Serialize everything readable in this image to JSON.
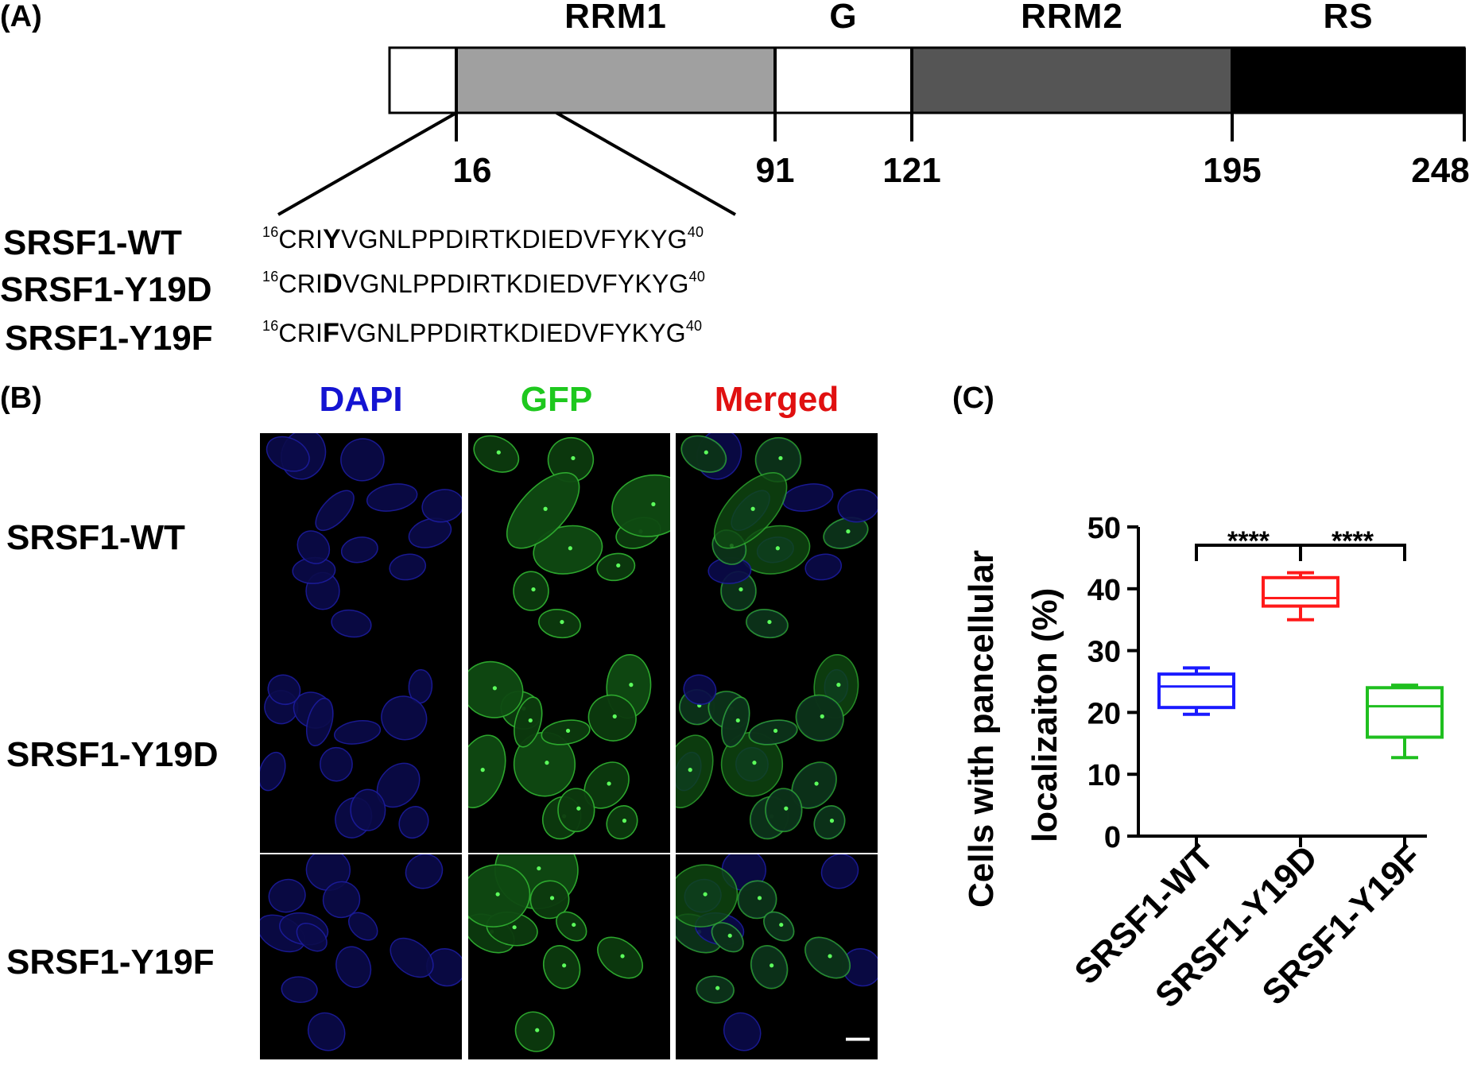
{
  "panels": {
    "a": "(A)",
    "b": "(B)",
    "c": "(C)"
  },
  "domain_map": {
    "domains": [
      {
        "name": "",
        "start": 1,
        "end": 16,
        "fill": "#ffffff"
      },
      {
        "name": "RRM1",
        "start": 16,
        "end": 91,
        "fill": "#a0a0a0"
      },
      {
        "name": "G",
        "start": 91,
        "end": 121,
        "fill": "#ffffff"
      },
      {
        "name": "RRM2",
        "start": 121,
        "end": 195,
        "fill": "#555555"
      },
      {
        "name": "RS",
        "start": 195,
        "end": 248,
        "fill": "#000000"
      }
    ],
    "positions": [
      "16",
      "91",
      "121",
      "195",
      "248"
    ]
  },
  "sequences": [
    {
      "label": "SRSF1-WT",
      "start": "16",
      "pre": "CRI",
      "mut": "Y",
      "post": "VGNLPPDIRTKDIEDVFYKYG",
      "end": "40"
    },
    {
      "label": "SRSF1-Y19D",
      "start": "16",
      "pre": "CRI",
      "mut": "D",
      "post": "VGNLPPDIRTKDIEDVFYKYG",
      "end": "40"
    },
    {
      "label": "SRSF1-Y19F",
      "start": "16",
      "pre": "CRI",
      "mut": "F",
      "post": "VGNLPPDIRTKDIEDVFYKYG",
      "end": "40"
    }
  ],
  "microscopy": {
    "channels": [
      {
        "name": "DAPI",
        "color": "#1414d2"
      },
      {
        "name": "GFP",
        "color": "#1ec81e"
      },
      {
        "name": "Merged",
        "color": "#e01010"
      }
    ],
    "rows": [
      "SRSF1-WT",
      "SRSF1-Y19D",
      "SRSF1-Y19F"
    ]
  },
  "chart_data": {
    "type": "box",
    "ylabel": "Cells with pancellular localizaiton (%)",
    "ylabel_lines": [
      "Cells with pancellular",
      "localizaiton (%)"
    ],
    "ylim": [
      0,
      50
    ],
    "yticks": [
      0,
      10,
      20,
      30,
      40,
      50
    ],
    "categories": [
      "SRSF1-WT",
      "SRSF1-Y19D",
      "SRSF1-Y19F"
    ],
    "series": [
      {
        "name": "SRSF1-WT",
        "min": 19.7,
        "q1": 20.8,
        "median": 24.2,
        "q3": 26.2,
        "max": 27.2,
        "color": "#1a1aff"
      },
      {
        "name": "SRSF1-Y19D",
        "min": 35.0,
        "q1": 37.2,
        "median": 38.5,
        "q3": 41.8,
        "max": 42.6,
        "color": "#ff1a1a"
      },
      {
        "name": "SRSF1-Y19F",
        "min": 12.7,
        "q1": 16.0,
        "median": 21.0,
        "q3": 24.0,
        "max": 24.4,
        "color": "#1fbf1f"
      }
    ],
    "significance": [
      {
        "from": 0,
        "to": 1,
        "label": "****"
      },
      {
        "from": 1,
        "to": 2,
        "label": "****"
      }
    ]
  }
}
